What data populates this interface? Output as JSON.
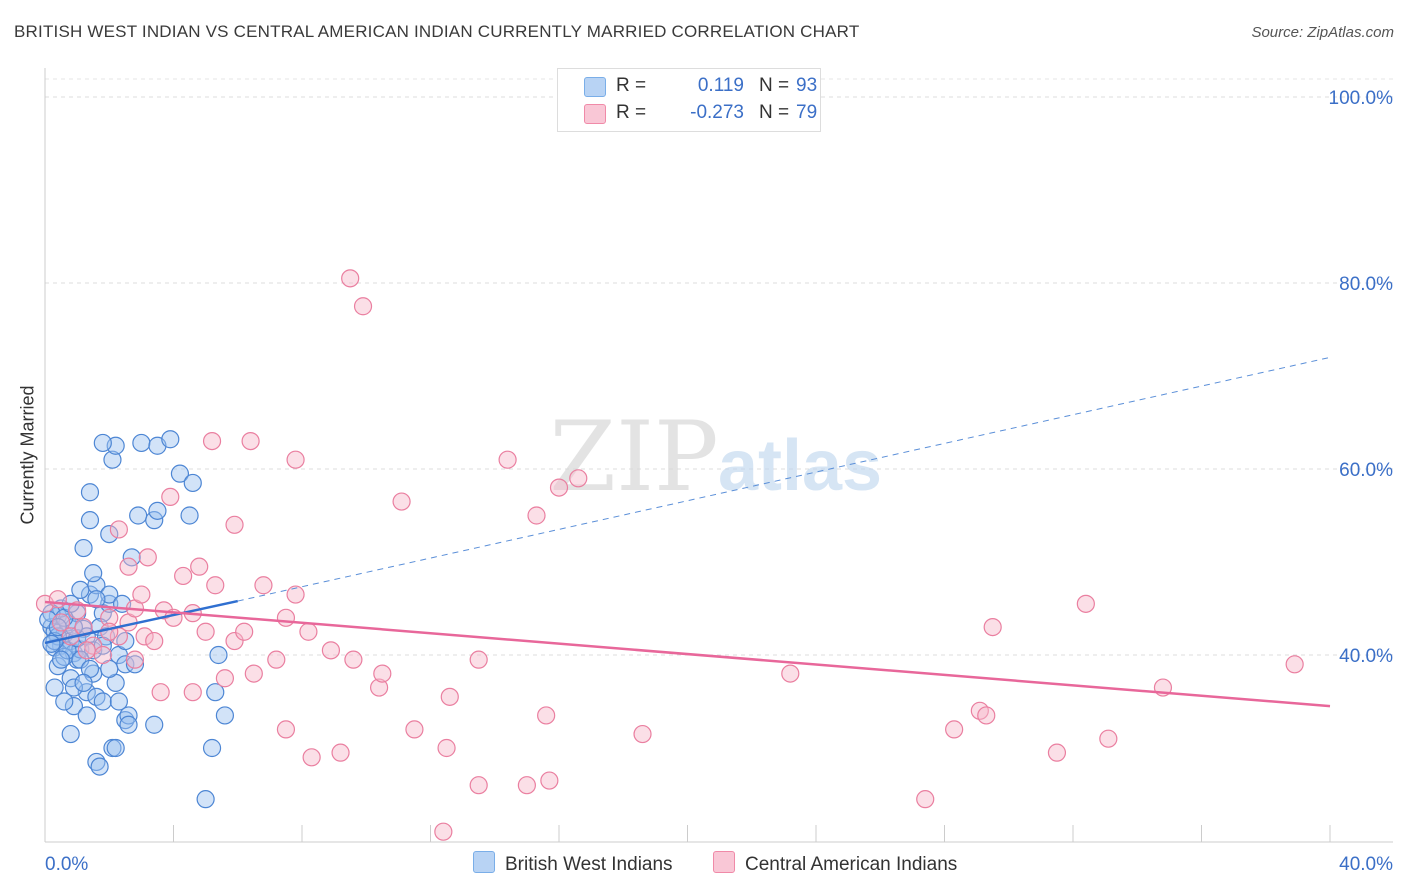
{
  "title": "BRITISH WEST INDIAN VS CENTRAL AMERICAN INDIAN CURRENTLY MARRIED CORRELATION CHART",
  "source": "Source: ZipAtlas.com",
  "watermark": {
    "zip": "ZIP",
    "atlas": "atlas"
  },
  "legend": {
    "series": [
      {
        "name": "British West Indians",
        "r_label": "R =",
        "r_value": "0.119",
        "n_label": "N =",
        "n_value": "93",
        "color": "#7aaee8",
        "fill": "#b8d3f4"
      },
      {
        "name": "Central American Indians",
        "r_label": "R =",
        "r_value": "-0.273",
        "n_label": "N =",
        "n_value": "79",
        "color": "#f08aa8",
        "fill": "#f9c7d6"
      }
    ]
  },
  "chart_data": {
    "type": "scatter",
    "title": "BRITISH WEST INDIAN VS CENTRAL AMERICAN INDIAN CURRENTLY MARRIED CORRELATION CHART",
    "xlabel": "",
    "ylabel": "Currently Married",
    "xlim": [
      0,
      40
    ],
    "ylim": [
      20,
      104
    ],
    "x_tick_labels": [
      "0.0%",
      "40.0%"
    ],
    "y_ticks": [
      40,
      60,
      80,
      100
    ],
    "y_tick_labels": [
      "40.0%",
      "60.0%",
      "80.0%",
      "100.0%"
    ],
    "grid": true,
    "legend_position": "top-center",
    "series": [
      {
        "name": "British West Indians",
        "color": "#5b8fd8",
        "trend": {
          "x": [
            0,
            6
          ],
          "y": [
            41.3,
            45.8
          ],
          "extended_x": [
            6,
            40
          ],
          "extended_y": [
            45.8,
            72.0
          ]
        },
        "points": [
          [
            0.2,
            43.0
          ],
          [
            0.3,
            42.5
          ],
          [
            0.4,
            44.2
          ],
          [
            0.5,
            41.0
          ],
          [
            0.6,
            42.2
          ],
          [
            0.3,
            40.8
          ],
          [
            0.7,
            43.5
          ],
          [
            0.8,
            41.5
          ],
          [
            0.9,
            40.2
          ],
          [
            1.0,
            39.5
          ],
          [
            0.4,
            38.8
          ],
          [
            0.6,
            39.8
          ],
          [
            1.1,
            40.6
          ],
          [
            1.2,
            42.8
          ],
          [
            0.8,
            37.5
          ],
          [
            1.5,
            38.0
          ],
          [
            1.3,
            36.0
          ],
          [
            1.6,
            35.5
          ],
          [
            2.2,
            37.0
          ],
          [
            1.0,
            44.5
          ],
          [
            1.4,
            46.5
          ],
          [
            1.1,
            47.0
          ],
          [
            1.6,
            47.5
          ],
          [
            1.5,
            48.8
          ],
          [
            1.8,
            44.5
          ],
          [
            2.0,
            45.5
          ],
          [
            1.7,
            43.0
          ],
          [
            1.9,
            42.0
          ],
          [
            2.3,
            40.0
          ],
          [
            2.5,
            39.0
          ],
          [
            1.2,
            51.5
          ],
          [
            1.4,
            57.5
          ],
          [
            1.4,
            54.5
          ],
          [
            2.0,
            53.0
          ],
          [
            2.7,
            50.5
          ],
          [
            2.9,
            55.0
          ],
          [
            3.4,
            54.5
          ],
          [
            3.5,
            55.5
          ],
          [
            2.1,
            61.0
          ],
          [
            2.2,
            62.5
          ],
          [
            1.8,
            62.8
          ],
          [
            3.0,
            62.8
          ],
          [
            3.5,
            62.5
          ],
          [
            3.9,
            63.2
          ],
          [
            4.2,
            59.5
          ],
          [
            4.6,
            58.5
          ],
          [
            4.5,
            55.0
          ],
          [
            0.9,
            34.5
          ],
          [
            1.3,
            33.5
          ],
          [
            1.8,
            35.0
          ],
          [
            2.3,
            35.0
          ],
          [
            2.5,
            33.0
          ],
          [
            2.6,
            33.5
          ],
          [
            2.6,
            32.5
          ],
          [
            3.4,
            32.5
          ],
          [
            0.8,
            31.5
          ],
          [
            2.1,
            30.0
          ],
          [
            2.2,
            30.0
          ],
          [
            1.6,
            28.5
          ],
          [
            1.7,
            28.0
          ],
          [
            5.2,
            30.0
          ],
          [
            5.0,
            24.5
          ],
          [
            5.6,
            33.5
          ],
          [
            5.3,
            36.0
          ],
          [
            5.4,
            40.0
          ],
          [
            0.3,
            36.5
          ],
          [
            0.6,
            35.0
          ],
          [
            0.9,
            36.5
          ],
          [
            2.0,
            46.5
          ],
          [
            2.4,
            45.5
          ],
          [
            0.5,
            45.0
          ],
          [
            0.2,
            44.5
          ],
          [
            0.4,
            42.0
          ],
          [
            0.7,
            40.5
          ],
          [
            1.0,
            41.8
          ],
          [
            1.3,
            42.0
          ],
          [
            1.5,
            40.5
          ],
          [
            0.9,
            43.0
          ],
          [
            0.5,
            39.5
          ],
          [
            1.8,
            41.0
          ],
          [
            2.8,
            39.0
          ],
          [
            0.3,
            41.5
          ],
          [
            0.6,
            44.0
          ],
          [
            1.1,
            39.5
          ],
          [
            1.4,
            38.5
          ],
          [
            1.2,
            37.0
          ],
          [
            2.0,
            38.5
          ],
          [
            0.1,
            43.8
          ],
          [
            0.2,
            41.2
          ],
          [
            0.8,
            45.5
          ],
          [
            1.6,
            46.0
          ],
          [
            2.5,
            41.5
          ],
          [
            0.4,
            43.0
          ]
        ]
      },
      {
        "name": "Central American Indians",
        "color": "#f08aa8",
        "trend": {
          "x": [
            0,
            40
          ],
          "y": [
            45.7,
            34.5
          ]
        },
        "points": [
          [
            0.0,
            45.5
          ],
          [
            0.5,
            43.5
          ],
          [
            0.8,
            42.0
          ],
          [
            1.2,
            43.0
          ],
          [
            1.5,
            41.0
          ],
          [
            1.8,
            40.0
          ],
          [
            2.0,
            44.0
          ],
          [
            2.3,
            42.0
          ],
          [
            2.6,
            43.5
          ],
          [
            2.8,
            45.0
          ],
          [
            3.1,
            42.0
          ],
          [
            3.4,
            41.5
          ],
          [
            3.7,
            44.8
          ],
          [
            4.0,
            44.0
          ],
          [
            4.3,
            48.5
          ],
          [
            4.6,
            44.5
          ],
          [
            5.0,
            42.5
          ],
          [
            5.3,
            47.5
          ],
          [
            5.6,
            37.5
          ],
          [
            5.9,
            41.5
          ],
          [
            6.2,
            42.5
          ],
          [
            6.5,
            38.0
          ],
          [
            6.8,
            47.5
          ],
          [
            7.2,
            39.5
          ],
          [
            7.5,
            44.0
          ],
          [
            7.8,
            46.5
          ],
          [
            8.2,
            42.5
          ],
          [
            8.9,
            40.5
          ],
          [
            9.6,
            39.5
          ],
          [
            10.4,
            36.5
          ],
          [
            10.5,
            38.0
          ],
          [
            11.5,
            32.0
          ],
          [
            3.0,
            46.5
          ],
          [
            3.2,
            50.5
          ],
          [
            4.8,
            49.5
          ],
          [
            5.9,
            54.0
          ],
          [
            3.9,
            57.0
          ],
          [
            2.3,
            53.5
          ],
          [
            2.6,
            49.5
          ],
          [
            7.8,
            61.0
          ],
          [
            6.4,
            63.0
          ],
          [
            5.2,
            63.0
          ],
          [
            11.1,
            56.5
          ],
          [
            14.4,
            61.0
          ],
          [
            15.3,
            55.0
          ],
          [
            16.0,
            58.0
          ],
          [
            16.6,
            59.0
          ],
          [
            9.5,
            80.5
          ],
          [
            9.9,
            77.5
          ],
          [
            7.5,
            32.0
          ],
          [
            8.3,
            29.0
          ],
          [
            9.2,
            29.5
          ],
          [
            12.6,
            35.5
          ],
          [
            13.5,
            39.5
          ],
          [
            12.5,
            30.0
          ],
          [
            15.7,
            26.5
          ],
          [
            15.6,
            33.5
          ],
          [
            18.6,
            31.5
          ],
          [
            23.2,
            38.0
          ],
          [
            27.4,
            24.5
          ],
          [
            28.3,
            32.0
          ],
          [
            29.1,
            34.0
          ],
          [
            29.3,
            33.5
          ],
          [
            29.5,
            43.0
          ],
          [
            31.5,
            29.5
          ],
          [
            32.4,
            45.5
          ],
          [
            33.1,
            31.0
          ],
          [
            34.8,
            36.5
          ],
          [
            38.9,
            39.0
          ],
          [
            13.5,
            26.0
          ],
          [
            15.0,
            26.0
          ],
          [
            12.4,
            21.0
          ],
          [
            4.6,
            36.0
          ],
          [
            3.6,
            36.0
          ],
          [
            2.8,
            39.5
          ],
          [
            1.3,
            40.5
          ],
          [
            2.0,
            42.5
          ],
          [
            0.4,
            46.0
          ],
          [
            1.0,
            44.8
          ]
        ]
      }
    ]
  }
}
